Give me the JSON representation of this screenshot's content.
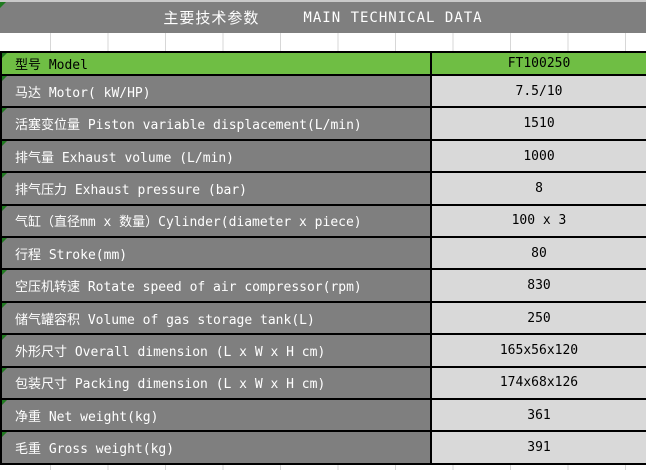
{
  "title": {
    "zh": "主要技术参数",
    "en": "MAIN TECHNICAL DATA"
  },
  "colors": {
    "header_gray": "#7f7f7f",
    "label_gray": "#7f7f7f",
    "value_gray": "#d9d9d9",
    "accent_green": "#6fbe44",
    "flag_green": "#1f7a1f",
    "grid_line": "#d7d7d7"
  },
  "table": {
    "rows": [
      {
        "label": "型号 Model",
        "value": "FT100250",
        "highlight": true
      },
      {
        "label": "马达 Motor( kW/HP)",
        "value": "7.5/10",
        "highlight": false
      },
      {
        "label": "活塞变位量 Piston variable displacement(L/min)",
        "value": "1510",
        "highlight": false
      },
      {
        "label": "排气量 Exhaust volume (L/min)",
        "value": "1000",
        "highlight": false
      },
      {
        "label": "排气压力 Exhaust pressure (bar)",
        "value": "8",
        "highlight": false
      },
      {
        "label": "气缸（直径mm x 数量）Cylinder(diameter x piece)",
        "value": "100 x 3",
        "highlight": false
      },
      {
        "label": "行程 Stroke(mm)",
        "value": "80",
        "highlight": false
      },
      {
        "label": "空压机转速 Rotate speed of air compressor(rpm)",
        "value": "830",
        "highlight": false
      },
      {
        "label": "储气罐容积 Volume of gas storage tank(L)",
        "value": "250",
        "highlight": false
      },
      {
        "label": "外形尺寸 Overall dimension (L x W x H cm)",
        "value": "165x56x120",
        "highlight": false
      },
      {
        "label": "包装尺寸 Packing dimension (L x W x H cm)",
        "value": "174x68x126",
        "highlight": false
      },
      {
        "label": "净重 Net weight(kg)",
        "value": "361",
        "highlight": false
      },
      {
        "label": "毛重 Gross weight(kg)",
        "value": "391",
        "highlight": false
      }
    ]
  }
}
